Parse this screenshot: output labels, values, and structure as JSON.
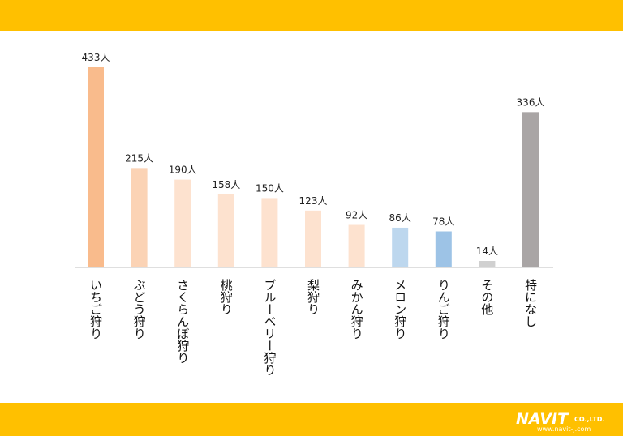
{
  "chart_data": {
    "type": "bar",
    "categories": [
      "いちご狩り",
      "ぶどう狩り",
      "さくらんぼ狩り",
      "桃狩り",
      "ブルーベリー狩り",
      "梨狩り",
      "みかん狩り",
      "メロン狩り",
      "りんご狩り",
      "その他",
      "特になし"
    ],
    "values": [
      433,
      215,
      190,
      158,
      150,
      123,
      92,
      86,
      78,
      14,
      336
    ],
    "value_labels": [
      "433人",
      "215人",
      "190人",
      "158人",
      "150人",
      "123人",
      "92人",
      "86人",
      "78人",
      "14人",
      "336人"
    ],
    "colors": [
      "#f9bb8c",
      "#fbd3b5",
      "#fde2cf",
      "#fde2cf",
      "#fde2cf",
      "#fde2cf",
      "#fde2cf",
      "#bdd7ee",
      "#9dc3e6",
      "#d0d0d0",
      "#a9a5a5"
    ]
  },
  "logo": {
    "name": "NAVIT",
    "suffix": "CO.,LTD.",
    "url": "www.navit-j.com"
  }
}
